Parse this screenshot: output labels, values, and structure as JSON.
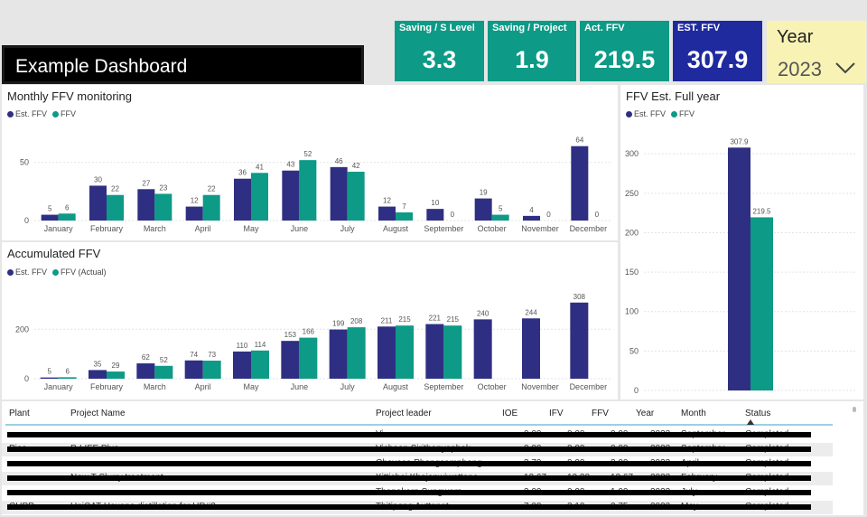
{
  "header": {
    "title": "Example Dashboard",
    "kpis": [
      {
        "label": "Saving / S Level",
        "value": "3.3"
      },
      {
        "label": "Saving / Project",
        "value": "1.9"
      },
      {
        "label": "Act. FFV",
        "value": "219.5"
      },
      {
        "label": "EST. FFV",
        "value": "307.9"
      }
    ],
    "year_filter": {
      "label": "Year",
      "value": "2023"
    }
  },
  "colors": {
    "est": "#2e2f83",
    "ffv": "#0d9a86"
  },
  "chart_data": [
    {
      "type": "bar",
      "title": "Monthly FFV monitoring",
      "categories": [
        "January",
        "February",
        "March",
        "April",
        "May",
        "June",
        "July",
        "August",
        "September",
        "October",
        "November",
        "December"
      ],
      "series": [
        {
          "name": "Est. FFV",
          "values": [
            5,
            30,
            27,
            12,
            36,
            43,
            46,
            12,
            10,
            19,
            4,
            64
          ]
        },
        {
          "name": "FFV",
          "values": [
            6,
            22,
            23,
            22,
            41,
            52,
            42,
            7,
            0,
            5,
            0,
            0
          ]
        }
      ],
      "yticks": [
        0,
        50
      ],
      "ylim": [
        0,
        70
      ]
    },
    {
      "type": "bar",
      "title": "Accumulated FFV",
      "categories": [
        "January",
        "February",
        "March",
        "April",
        "May",
        "June",
        "July",
        "August",
        "September",
        "October",
        "November",
        "December"
      ],
      "series": [
        {
          "name": "Est. FFV",
          "values": [
            5,
            35,
            62,
            74,
            110,
            153,
            199,
            211,
            221,
            240,
            244,
            308
          ]
        },
        {
          "name": "FFV (Actual)",
          "values": [
            6,
            29,
            52,
            73,
            114,
            166,
            208,
            215,
            215,
            null,
            null,
            null
          ]
        }
      ],
      "yticks": [
        0,
        200
      ],
      "ylim": [
        0,
        340
      ]
    },
    {
      "type": "bar",
      "title": "FFV Est. Full year",
      "categories": [
        ""
      ],
      "series": [
        {
          "name": "Est. FFV",
          "values": [
            307.9
          ]
        },
        {
          "name": "FFV",
          "values": [
            219.5
          ]
        }
      ],
      "yticks": [
        0,
        50,
        100,
        150,
        200,
        250,
        300
      ],
      "ylim": [
        0,
        330
      ]
    }
  ],
  "table": {
    "columns": [
      "Plant",
      "Project Name",
      "Project leader",
      "IOE",
      "IFV",
      "FFV",
      "Year",
      "Month",
      "Status"
    ],
    "visible_fragments": [
      {
        "c3": "Vi",
        "c4": "0.00",
        "c5": "0.00",
        "c6": "0.00",
        "c7": "2023",
        "c8": "September",
        "c9": "Completed"
      },
      {
        "c1": "Pias",
        "c2": "P-LIFE Plus",
        "c3": "Vichaen Sirithanyaphak",
        "c4": "0.00",
        "c5": "0.00",
        "c6": "0.00",
        "c7": "2023",
        "c8": "September",
        "c9": "Completed"
      },
      {
        "c3": "Chavasa Phongsamphong",
        "c4": "3.70",
        "c5": "0.00",
        "c6": "3.00",
        "c7": "2023",
        "c8": "April",
        "c9": "Completed"
      },
      {
        "c2": "New T-Slurry treatment",
        "c3": "Kittichai Khajonwiwattana",
        "c4": "12.67",
        "c5": "10.30",
        "c6": "12.67",
        "c7": "2023",
        "c8": "February",
        "c9": "Completed"
      },
      {
        "c3": "Thanakorn Sungworn",
        "c4": "2.00",
        "c5": "0.00",
        "c6": "1.00",
        "c7": "2023",
        "c8": "July",
        "c9": "Completed"
      },
      {
        "c1": "CHPP",
        "c2": "UniCAT Hexane distillation for HD#2",
        "c3": "Thitipong Auttanat",
        "c4": "7.00",
        "c5": "2.10",
        "c6": "3.75",
        "c7": "2023",
        "c8": "May",
        "c9": "Completed"
      }
    ]
  }
}
